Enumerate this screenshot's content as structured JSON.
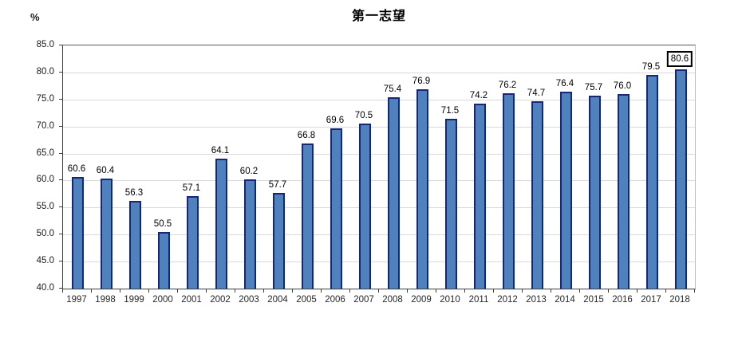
{
  "chart_data": {
    "type": "bar",
    "title": "第一志望",
    "unit_label": "%",
    "categories": [
      "1997",
      "1998",
      "1999",
      "2000",
      "2001",
      "2002",
      "2003",
      "2004",
      "2005",
      "2006",
      "2007",
      "2008",
      "2009",
      "2010",
      "2011",
      "2012",
      "2013",
      "2014",
      "2015",
      "2016",
      "2017",
      "2018"
    ],
    "values": [
      60.6,
      60.4,
      56.3,
      50.5,
      57.1,
      64.1,
      60.2,
      57.7,
      66.8,
      69.6,
      70.5,
      75.4,
      76.9,
      71.5,
      74.2,
      76.2,
      74.7,
      76.4,
      75.7,
      76.0,
      79.5,
      80.6
    ],
    "value_labels": [
      "60.6",
      "60.4",
      "56.3",
      "50.5",
      "57.1",
      "64.1",
      "60.2",
      "57.7",
      "66.8",
      "69.6",
      "70.5",
      "75.4",
      "76.9",
      "71.5",
      "74.2",
      "76.2",
      "74.7",
      "76.4",
      "75.7",
      "76.0",
      "79.5",
      "80.6"
    ],
    "highlight_index": 21,
    "highlight_style": "boxed",
    "ylim": [
      40,
      85
    ],
    "ytick_values": [
      40,
      45,
      50,
      55,
      60,
      65,
      70,
      75,
      80,
      85
    ],
    "ytick_labels": [
      "40.0",
      "45.0",
      "50.0",
      "55.0",
      "60.0",
      "65.0",
      "70.0",
      "75.0",
      "80.0",
      "85.0"
    ],
    "grid": true,
    "legend": "none",
    "bar_color": "#4f81bd",
    "bar_border_color": "#1b2577",
    "gridline_color": "#d9d9d9"
  }
}
